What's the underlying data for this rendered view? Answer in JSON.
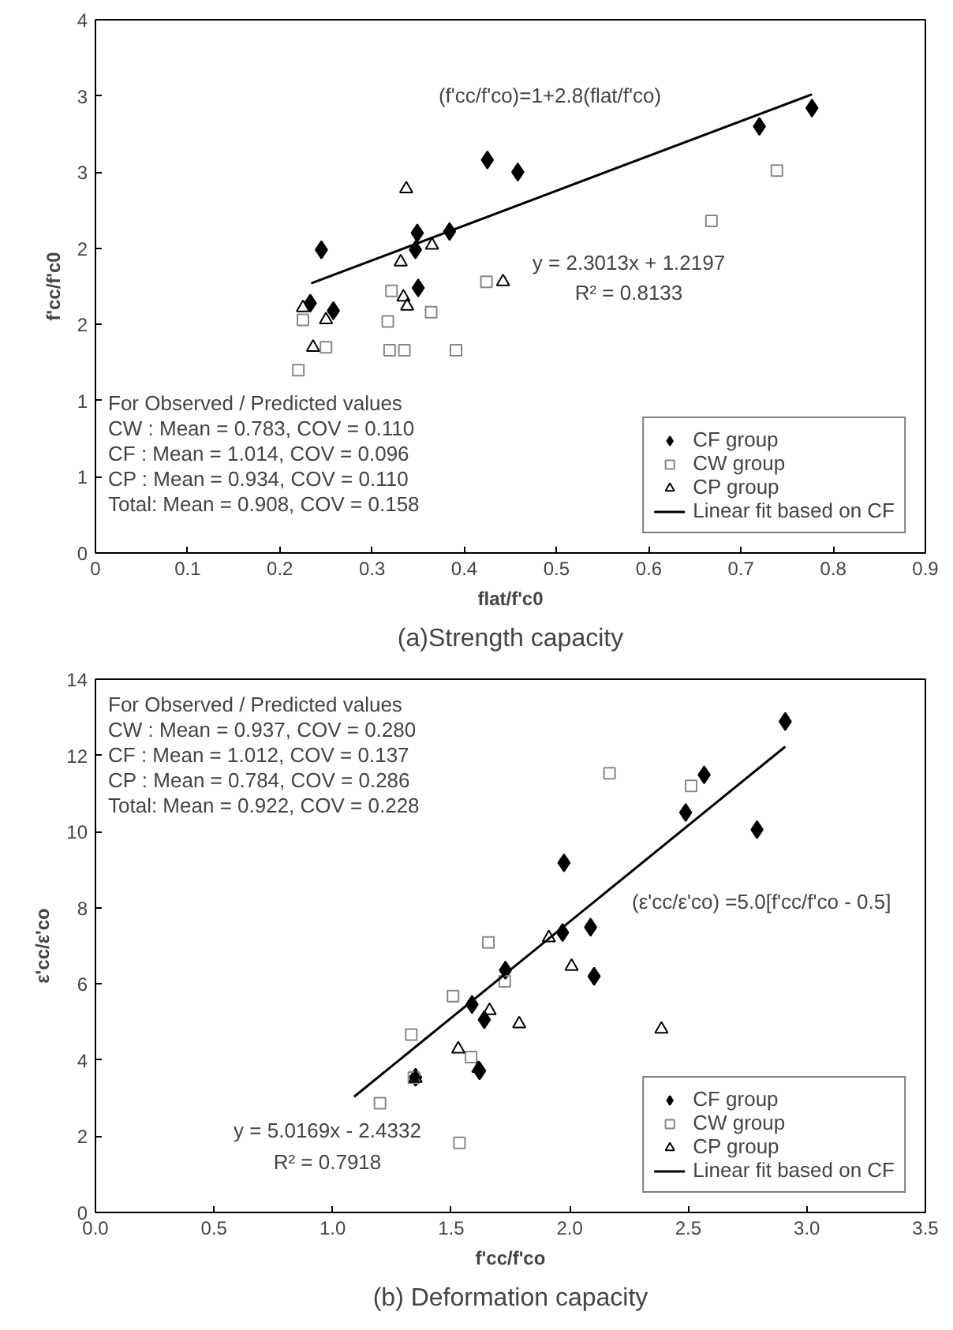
{
  "chart_data": [
    {
      "type": "scatter",
      "title": "(a)Strength capacity",
      "xlabel": "flat/f'c0",
      "ylabel": "f'cc/f'c0",
      "xlim": [
        0,
        0.9
      ],
      "ylim": [
        0,
        3.5
      ],
      "xticks": [
        0,
        0.1,
        0.2,
        0.3,
        0.4,
        0.5,
        0.6,
        0.7,
        0.8,
        0.9
      ],
      "yticks": [
        0,
        {
          "value": 0.5,
          "label": "1"
        },
        1,
        {
          "value": 1.5,
          "label": "2"
        },
        2,
        {
          "value": 2.5,
          "label": "3"
        },
        3,
        {
          "value": 3.5,
          "label": "4"
        }
      ],
      "grid": false,
      "legend": "bottom right",
      "series": [
        {
          "name": "CF group",
          "color": "#000000",
          "marker": "diamond",
          "x": [
            0.777,
            0.72,
            0.425,
            0.458,
            0.384,
            0.349,
            0.347,
            0.245,
            0.35,
            0.233,
            0.258
          ],
          "values": [
            2.92,
            2.8,
            2.58,
            2.5,
            2.11,
            2.1,
            1.99,
            1.99,
            1.74,
            1.64,
            1.59
          ]
        },
        {
          "name": "CW group",
          "color": "#888888",
          "marker": "square",
          "x": [
            0.739,
            0.668,
            0.424,
            0.321,
            0.364,
            0.317,
            0.225,
            0.25,
            0.319,
            0.335,
            0.391,
            0.22
          ],
          "values": [
            2.51,
            2.18,
            1.78,
            1.72,
            1.58,
            1.52,
            1.53,
            1.35,
            1.33,
            1.33,
            1.33,
            1.2
          ]
        },
        {
          "name": "CP group",
          "color": "#000000",
          "marker": "triangle",
          "x": [
            0.337,
            0.365,
            0.331,
            0.442,
            0.334,
            0.338,
            0.225,
            0.25,
            0.236
          ],
          "values": [
            2.39,
            2.02,
            1.91,
            1.78,
            1.68,
            1.62,
            1.61,
            1.53,
            1.35
          ]
        },
        {
          "name": "Linear fit based on CF",
          "type": "line",
          "color": "#000000",
          "marker": "none",
          "x": [
            0.234,
            0.777
          ],
          "values": [
            1.77,
            3.01
          ]
        }
      ],
      "annotations": [
        "(f'cc/f'co)=1+2.8(flat/f'co)",
        "y = 2.3013x + 1.2197",
        "R² = 0.8133",
        "For Observed / Predicted values",
        "CW  : Mean = 0.783, COV = 0.110",
        "CF   : Mean = 1.014, COV = 0.096",
        "CP   : Mean = 0.934, COV = 0.110",
        "Total: Mean = 0.908, COV = 0.158"
      ]
    },
    {
      "type": "scatter",
      "title": "(b) Deformation capacity",
      "xlabel": "f'cc/f'co",
      "ylabel": "ε'cc/ε'co",
      "xlim": [
        0,
        3.5
      ],
      "ylim": [
        0,
        14
      ],
      "xticks": [
        {
          "value": 0,
          "label": "0.0"
        },
        0.5,
        {
          "value": 1,
          "label": "1.0"
        },
        1.5,
        {
          "value": 2,
          "label": "2.0"
        },
        2.5,
        {
          "value": 3,
          "label": "3.0"
        },
        3.5
      ],
      "yticks": [
        0,
        2,
        4,
        6,
        8,
        10,
        12,
        14
      ],
      "grid": false,
      "legend": "bottom right",
      "series": [
        {
          "name": "CF group",
          "color": "#000000",
          "marker": "diamond",
          "x": [
            2.909,
            2.567,
            2.489,
            2.79,
            1.976,
            2.088,
            1.97,
            2.103,
            1.729,
            1.588,
            1.64,
            1.35,
            1.62
          ],
          "values": [
            12.89,
            11.49,
            10.5,
            10.05,
            9.18,
            7.49,
            7.35,
            6.2,
            6.36,
            5.46,
            5.06,
            3.55,
            3.72
          ]
        },
        {
          "name": "CW group",
          "color": "#888888",
          "marker": "square",
          "x": [
            2.168,
            2.512,
            1.657,
            1.726,
            1.508,
            1.332,
            1.584,
            1.343,
            1.2,
            1.535
          ],
          "values": [
            11.53,
            11.2,
            7.09,
            6.07,
            5.68,
            4.67,
            4.08,
            3.54,
            2.87,
            1.83
          ]
        },
        {
          "name": "CP group",
          "color": "#000000",
          "marker": "triangle",
          "x": [
            1.912,
            2.008,
            1.662,
            1.787,
            2.387,
            1.53,
            1.615,
            1.35
          ],
          "values": [
            7.21,
            6.46,
            5.3,
            4.95,
            4.81,
            4.29,
            3.78,
            3.52
          ]
        },
        {
          "name": "Linear fit based on CF",
          "type": "line",
          "color": "#000000",
          "marker": "none",
          "x": [
            1.091,
            2.909
          ],
          "values": [
            3.04,
            12.23
          ]
        }
      ],
      "annotations": [
        "(ε'cc/ε'co) =5.0[f'cc/f'co - 0.5]",
        "y = 5.0169x - 2.4332",
        "R² = 0.7918",
        "For Observed / Predicted values",
        "CW  : Mean = 0.937, COV = 0.280",
        "CF   : Mean = 1.012, COV = 0.137",
        "CP   : Mean = 0.784, COV = 0.286",
        "Total: Mean = 0.922, COV = 0.228"
      ]
    }
  ]
}
